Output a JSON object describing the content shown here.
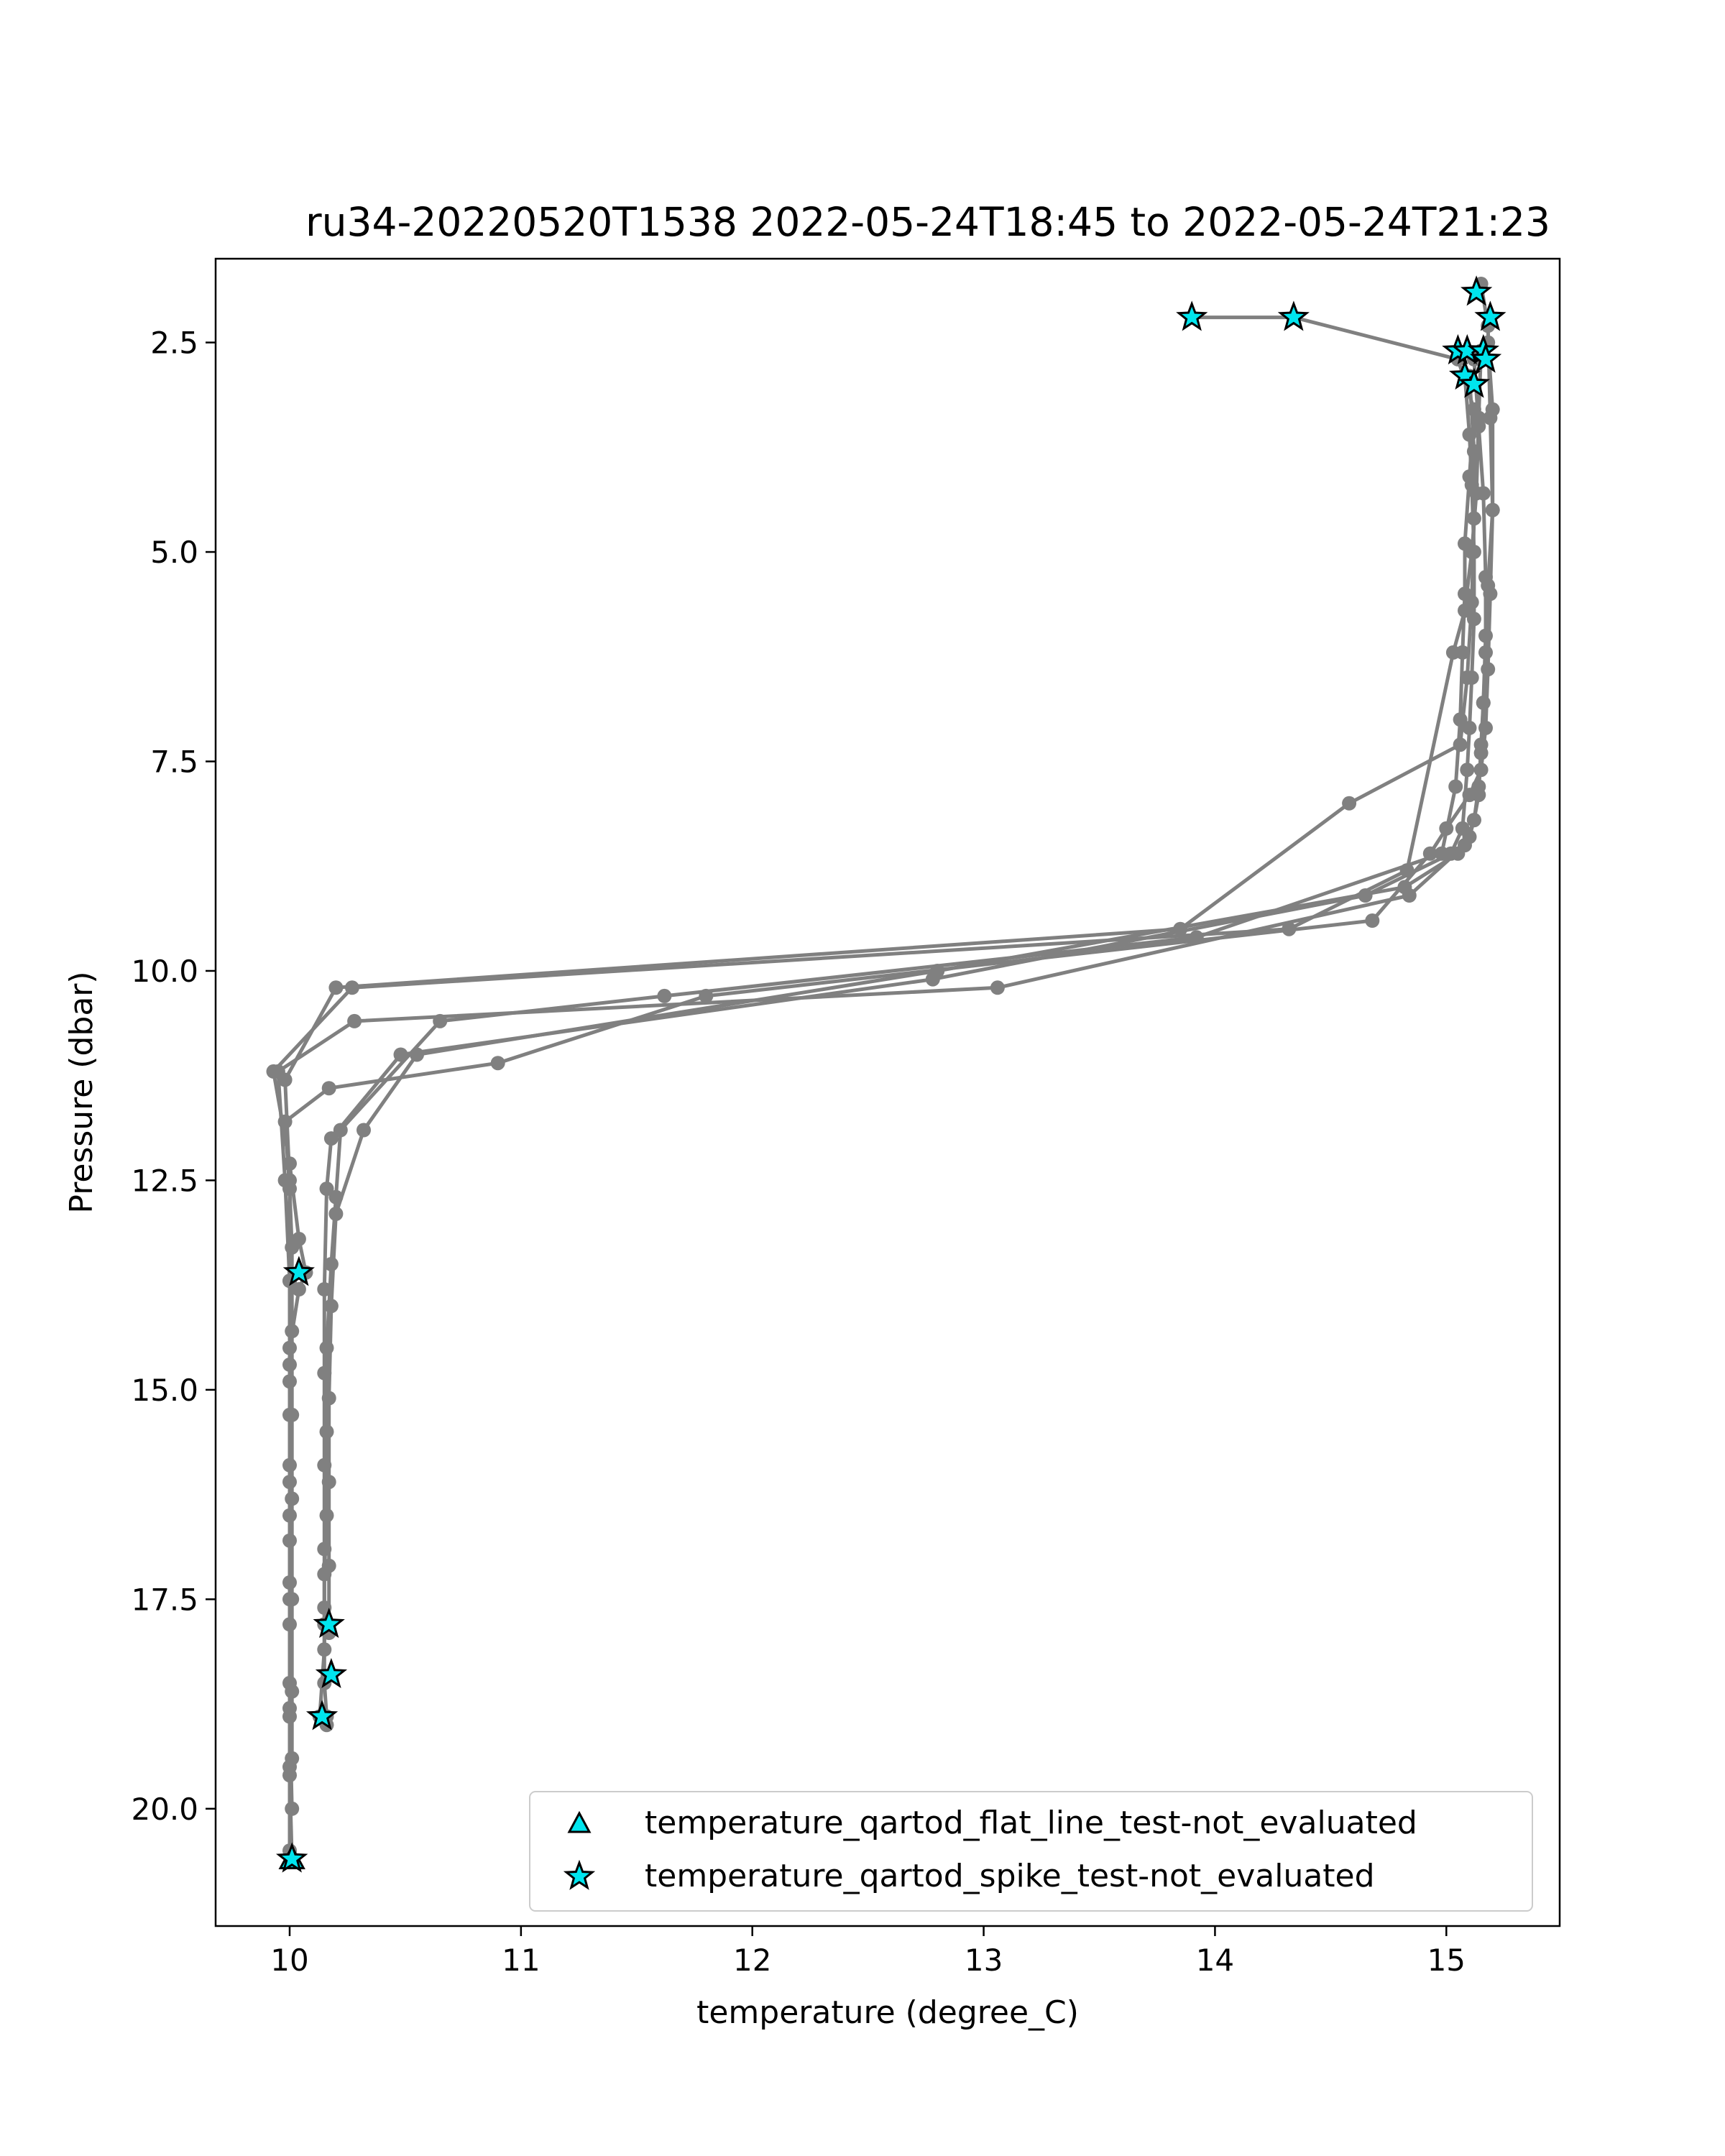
{
  "chart_data": {
    "type": "scatter",
    "title": "ru34-20220520T1538 2022-05-24T18:45 to 2022-05-24T21:23",
    "xlabel": "temperature (degree_C)",
    "ylabel": "Pressure (dbar)",
    "xlim": [
      9.68,
      15.49
    ],
    "ylim": [
      21.4,
      1.5
    ],
    "y_inverted": true,
    "grid": false,
    "legend_position": "lower-right",
    "xticks": [
      10,
      11,
      12,
      13,
      14,
      15
    ],
    "xtick_labels": [
      "10",
      "11",
      "12",
      "13",
      "14",
      "15"
    ],
    "yticks": [
      2.5,
      5.0,
      7.5,
      10.0,
      12.5,
      15.0,
      17.5,
      20.0
    ],
    "ytick_labels": [
      "2.5",
      "5.0",
      "7.5",
      "10.0",
      "12.5",
      "15.0",
      "17.5",
      "20.0"
    ],
    "colors": {
      "profile_line": "#808080",
      "flag_marker_fill": "#00e5ee",
      "flag_marker_edge": "#000000"
    },
    "profiles": [
      {
        "x": [
          13.9,
          14.34,
          15.05,
          15.12,
          15.1,
          15.08,
          15.08,
          15.07,
          15.06,
          15.04,
          14.98,
          13.92,
          11.62,
          10.65,
          10.22,
          10.2,
          10.18,
          10.16,
          10.16,
          10.16,
          10.15,
          10.15,
          10.15,
          10.16,
          10.16
        ],
        "y": [
          2.2,
          2.2,
          2.7,
          3.3,
          4.1,
          4.9,
          5.5,
          6.2,
          7.0,
          7.8,
          8.6,
          9.6,
          10.3,
          10.6,
          11.9,
          12.7,
          13.5,
          14.5,
          15.5,
          16.5,
          17.2,
          17.8,
          18.5,
          18.9,
          19.0
        ]
      },
      {
        "x": [
          15.12,
          15.14,
          15.16,
          15.17,
          15.17,
          15.16,
          15.15,
          15.14,
          15.12,
          15.1,
          15.05,
          14.82,
          12.8,
          10.55,
          10.32,
          10.2,
          10.18,
          10.17,
          10.17,
          10.17,
          10.17
        ],
        "y": [
          2.7,
          3.5,
          4.3,
          5.3,
          6.0,
          6.8,
          7.3,
          7.9,
          8.2,
          8.4,
          8.6,
          9.0,
          10.0,
          11.0,
          11.9,
          12.9,
          14.0,
          15.1,
          16.1,
          17.1,
          17.9
        ]
      },
      {
        "x": [
          15.08,
          15.1,
          15.11,
          15.12,
          15.12,
          15.11,
          15.1,
          15.09,
          15.07,
          15.02,
          14.65,
          12.78,
          10.48,
          10.18,
          10.16,
          10.15,
          10.15,
          10.15,
          10.15,
          10.15,
          10.15,
          10.13
        ],
        "y": [
          2.9,
          3.6,
          4.2,
          5.0,
          5.8,
          6.5,
          7.1,
          7.6,
          8.3,
          8.6,
          9.1,
          10.1,
          11.0,
          12.0,
          12.6,
          13.8,
          14.8,
          15.9,
          16.9,
          17.6,
          18.1,
          18.9
        ]
      },
      {
        "x": [
          15.15,
          15.18,
          15.19,
          15.2,
          15.18,
          15.17,
          15.16,
          15.15,
          15.14,
          15.12,
          15.08,
          14.84,
          13.06,
          10.28,
          9.95,
          9.98,
          10.0,
          10.0,
          10.0,
          10.0,
          10.0,
          10.0,
          10.0,
          10.01
        ],
        "y": [
          1.8,
          2.3,
          3.4,
          4.5,
          5.4,
          6.2,
          6.8,
          7.4,
          7.8,
          8.2,
          8.5,
          9.1,
          10.2,
          10.6,
          11.2,
          12.5,
          13.7,
          14.7,
          15.9,
          16.8,
          17.8,
          18.9,
          19.6,
          20.6
        ]
      },
      {
        "x": [
          15.18,
          15.2,
          15.2,
          15.19,
          15.18,
          15.17,
          15.15,
          15.1,
          15.0,
          14.93,
          14.68,
          11.8,
          10.9,
          10.17,
          9.98,
          10.0,
          10.01,
          10.01,
          10.01,
          10.01,
          10.01,
          10.01,
          10.01
        ],
        "y": [
          2.5,
          3.3,
          4.5,
          5.5,
          6.4,
          7.1,
          7.6,
          7.9,
          8.3,
          8.6,
          9.4,
          10.3,
          11.1,
          11.4,
          11.8,
          12.6,
          13.3,
          14.3,
          15.3,
          16.3,
          17.5,
          18.6,
          19.4
        ]
      },
      {
        "x": [
          15.15,
          15.14,
          15.13,
          15.11,
          15.08,
          15.03,
          14.83,
          14.32,
          10.27,
          9.93,
          10.0,
          10.04,
          10.07,
          10.04,
          10.0,
          10.0,
          10.0,
          10.0,
          10.0,
          10.0,
          10.0
        ],
        "y": [
          2.6,
          3.4,
          4.3,
          5.0,
          5.7,
          6.2,
          8.8,
          9.5,
          10.2,
          11.2,
          12.3,
          13.2,
          13.6,
          13.8,
          14.5,
          15.3,
          16.5,
          17.5,
          18.5,
          19.5,
          20.5
        ]
      },
      {
        "x": [
          15.1,
          15.12,
          15.12,
          15.11,
          15.09,
          15.06,
          14.58,
          13.85,
          10.2,
          9.98,
          10.0,
          10.0,
          10.0,
          10.0,
          10.0,
          10.0,
          10.01
        ],
        "y": [
          2.9,
          3.8,
          4.6,
          5.6,
          6.5,
          7.3,
          8.0,
          9.5,
          10.2,
          11.3,
          12.5,
          13.7,
          14.9,
          16.1,
          17.3,
          18.8,
          20.0
        ]
      }
    ],
    "flag_series": [
      {
        "name": "temperature_qartod_flat_line_test-not_evaluated",
        "marker": "triangle",
        "x": [
          10.01
        ],
        "y": [
          20.6
        ]
      },
      {
        "name": "temperature_qartod_spike_test-not_evaluated",
        "marker": "star",
        "x": [
          13.9,
          14.34,
          15.13,
          15.19,
          15.05,
          15.09,
          15.16,
          15.17,
          15.08,
          15.12,
          10.04,
          10.17,
          10.18,
          10.14,
          10.01
        ],
        "y": [
          2.2,
          2.2,
          1.9,
          2.2,
          2.6,
          2.6,
          2.6,
          2.7,
          2.9,
          3.0,
          13.6,
          17.8,
          18.4,
          18.9,
          20.6
        ]
      }
    ]
  }
}
